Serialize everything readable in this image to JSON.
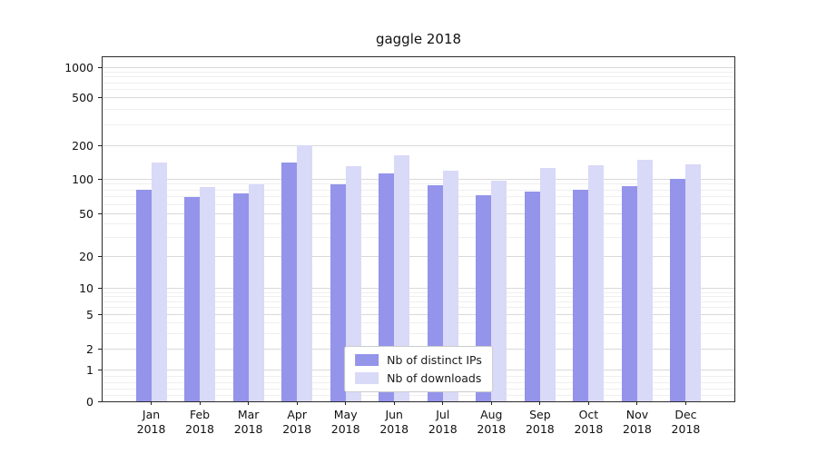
{
  "chart_data": {
    "type": "bar",
    "title": "gaggle 2018",
    "categories": [
      "Jan",
      "Feb",
      "Mar",
      "Apr",
      "May",
      "Jun",
      "Jul",
      "Aug",
      "Sep",
      "Oct",
      "Nov",
      "Dec"
    ],
    "year": "2018",
    "series": [
      {
        "name": "Nb of distinct IPs",
        "color": "#9494ea",
        "values": [
          80,
          70,
          75,
          140,
          90,
          112,
          88,
          72,
          78,
          80,
          87,
          100
        ]
      },
      {
        "name": "Nb of downloads",
        "color": "#d9d9f8",
        "values": [
          140,
          85,
          90,
          200,
          130,
          165,
          118,
          97,
          125,
          132,
          150,
          135
        ]
      }
    ],
    "xlabel": "",
    "ylabel": "",
    "yscale": "symlog",
    "ylim": [
      0,
      1200
    ],
    "y_ticks": [
      0,
      1,
      2,
      5,
      10,
      20,
      50,
      100,
      200,
      500,
      1000
    ],
    "y_minor_ticks": [
      0.2,
      0.4,
      0.6,
      0.8,
      3,
      4,
      6,
      7,
      8,
      9,
      30,
      40,
      60,
      70,
      80,
      90,
      300,
      400,
      600,
      700,
      800,
      900
    ],
    "grid": true,
    "legend_position": "lower center"
  }
}
